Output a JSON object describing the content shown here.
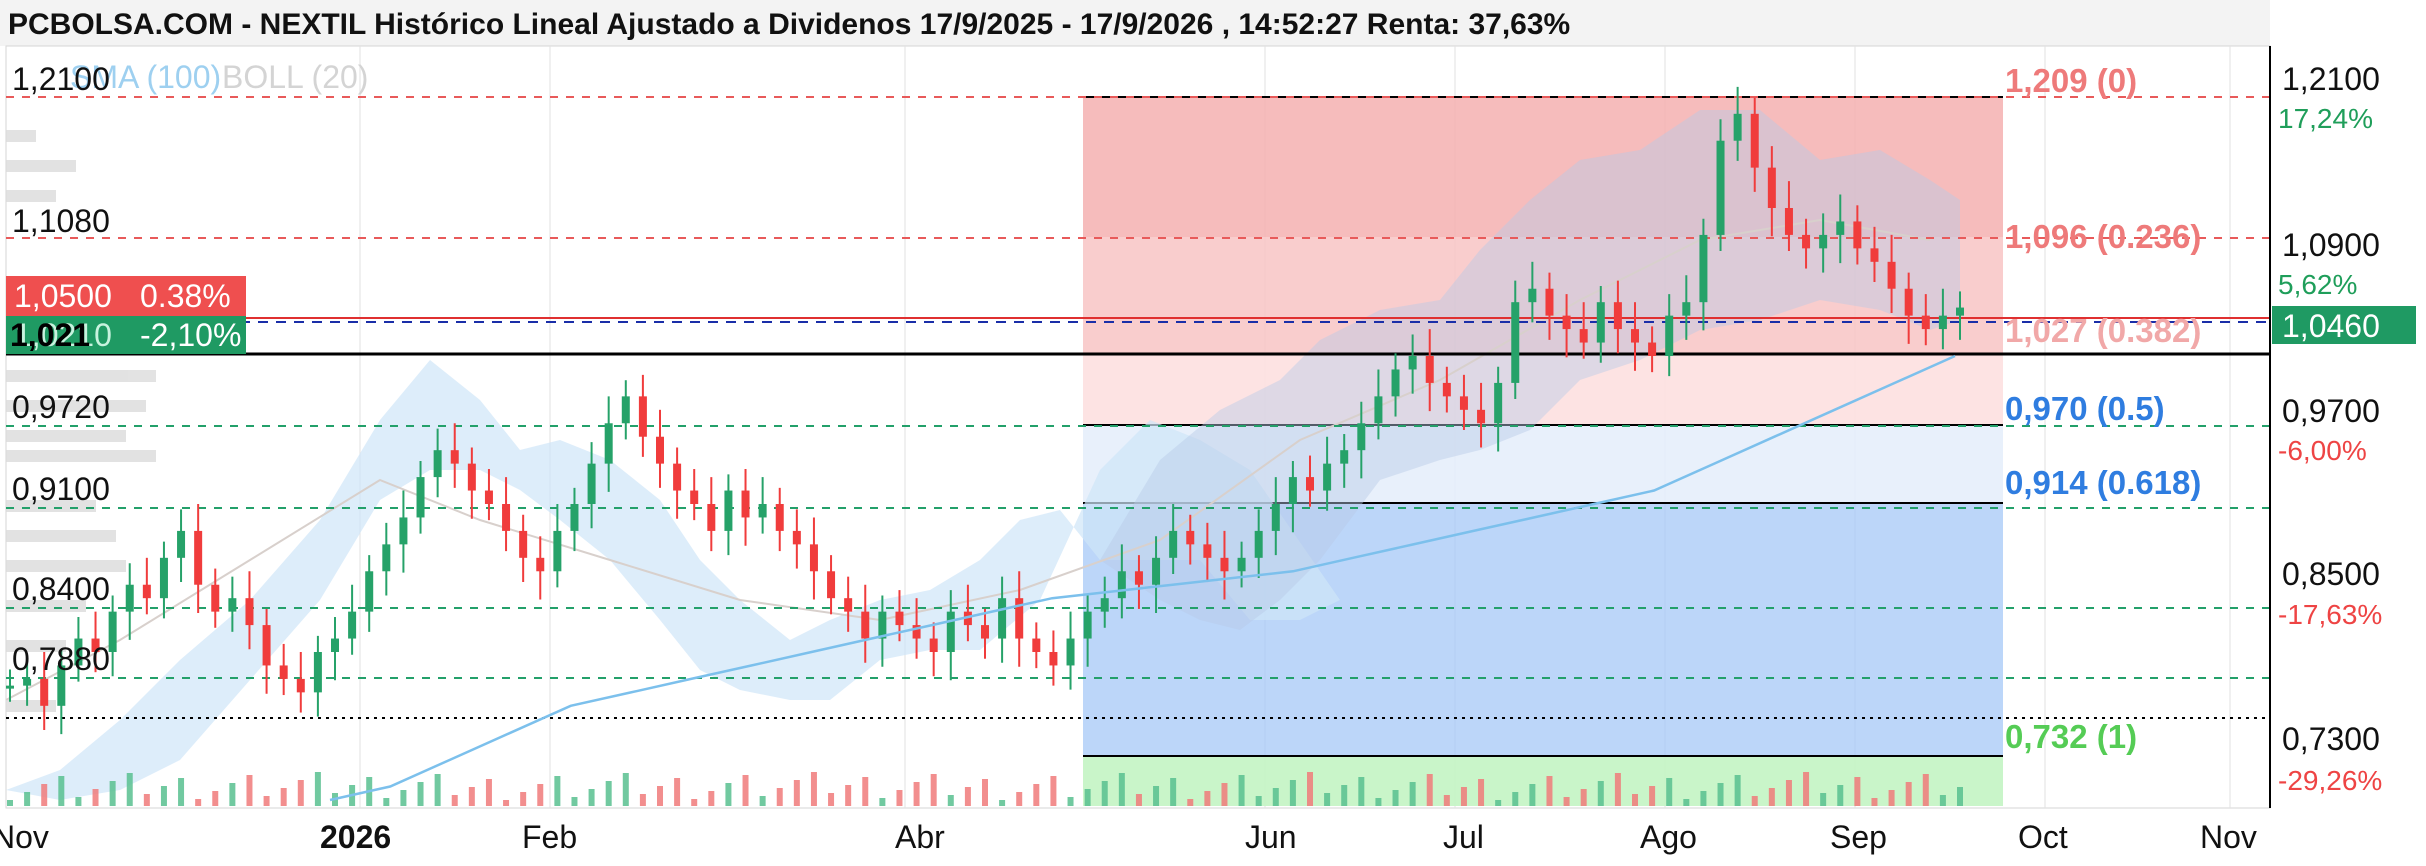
{
  "title": "PCBOLSA.COM - NEXTIL Histórico Lineal Ajustado a Dividenos 17/9/2025 - 17/9/2026 , 14:52:27 Renta: 37,63%",
  "colors": {
    "up": "#26a269",
    "down": "#f03c3c",
    "sma": "#7cc0ec",
    "boll_fill": "#cfe6f8",
    "fib_red": "#f4a5a5",
    "fib_blue": "#7fb3f5",
    "fib_green": "#9de69d",
    "green_text": "#1f9e5a",
    "red_text": "#ee4444",
    "blue_text": "#2f7de0"
  },
  "legend": {
    "sma": "SMA (100)",
    "boll": "BOLL (20)"
  },
  "price_badges": {
    "upper": {
      "price": "1,0500",
      "pct": "0.38%"
    },
    "lower": {
      "price": "1,0210",
      "pct": "-2,10%"
    },
    "line": "1,021"
  },
  "left_labels": [
    "1,2100",
    "1,1080",
    "0,9720",
    "0,9100",
    "0,8400",
    "0,7880"
  ],
  "right_axis": {
    "prices": [
      "1,2100",
      "1,0900",
      "0,9700",
      "0,8500",
      "0,7300"
    ],
    "pcts": [
      "17,24%",
      "5,62%",
      "-6,00%",
      "-17,63%",
      "-29,26%"
    ],
    "current": "1,0460"
  },
  "fib_labels": [
    {
      "text": "1,209 (0)",
      "tone": "red"
    },
    {
      "text": "1,096 (0.236)",
      "tone": "red"
    },
    {
      "text": "1,027 (0.382)",
      "tone": "red"
    },
    {
      "text": "0,970 (0.5)",
      "tone": "blue"
    },
    {
      "text": "0,914 (0.618)",
      "tone": "blue"
    },
    {
      "text": "0,732 (1)",
      "tone": "green"
    }
  ],
  "chart_data": {
    "type": "candlestick",
    "title": "PCBOLSA.COM - NEXTIL Histórico Lineal Ajustado a Dividenos 17/9/2025 - 17/9/2026 , 14:52:27 Renta: 37,63%",
    "x_ticks": [
      "Nov",
      "2026",
      "Feb",
      "Abr",
      "Jun",
      "Jul",
      "Ago",
      "Sep",
      "Oct",
      "Nov"
    ],
    "y_range": [
      0.68,
      1.23
    ],
    "y_ticks": [
      1.21,
      1.09,
      0.97,
      0.85,
      0.73
    ],
    "series_names": [
      "SMA (100)",
      "BOLL (20)"
    ],
    "close_path": [
      [
        0.765,
        0.77,
        0.75,
        0.78,
        0.8,
        0.79,
        0.82,
        0.84,
        0.83,
        0.86,
        0.88,
        0.84,
        0.82,
        0.83,
        0.81,
        0.78,
        0.77,
        0.76,
        0.79,
        0.8,
        0.82,
        0.85,
        0.87,
        0.89,
        0.92,
        0.94,
        0.93,
        0.91,
        0.9,
        0.88,
        0.86,
        0.85,
        0.88,
        0.9,
        0.93,
        0.96,
        0.98,
        0.95,
        0.93,
        0.91,
        0.9,
        0.88,
        0.91,
        0.89,
        0.9,
        0.88,
        0.87,
        0.85,
        0.83,
        0.82,
        0.8,
        0.82,
        0.81,
        0.8,
        0.79,
        0.82,
        0.81,
        0.8,
        0.83,
        0.8,
        0.79,
        0.78,
        0.8,
        0.82,
        0.83,
        0.85,
        0.84,
        0.86,
        0.88,
        0.87,
        0.86,
        0.85,
        0.86,
        0.88,
        0.9,
        0.92,
        0.91,
        0.93,
        0.94,
        0.96,
        0.98,
        1.0,
        1.01,
        0.99,
        0.98,
        0.97,
        0.96,
        0.99,
        1.05,
        1.06,
        1.04,
        1.03,
        1.02,
        1.05,
        1.03,
        1.02,
        1.01,
        1.04,
        1.05,
        1.1,
        1.17,
        1.19,
        1.15,
        1.12,
        1.1,
        1.09,
        1.1,
        1.11,
        1.09,
        1.08,
        1.06,
        1.04,
        1.03,
        1.04,
        1.046
      ]
    ],
    "sma_100": [
      [
        0.68,
        0.69,
        0.71,
        0.73,
        0.75,
        0.76,
        0.77,
        0.78,
        0.79,
        0.8,
        0.81,
        0.82,
        0.83,
        0.835,
        0.84,
        0.845,
        0.85,
        0.86,
        0.87,
        0.88,
        0.89,
        0.9,
        0.91,
        0.93,
        0.95,
        0.97,
        0.99,
        1.01
      ]
    ],
    "fibonacci": [
      {
        "level": 1.209,
        "ratio": "0"
      },
      {
        "level": 1.096,
        "ratio": "0.236"
      },
      {
        "level": 1.027,
        "ratio": "0.382"
      },
      {
        "level": 0.97,
        "ratio": "0.5"
      },
      {
        "level": 0.914,
        "ratio": "0.618"
      },
      {
        "level": 0.732,
        "ratio": "1"
      }
    ],
    "horizontal_levels": [
      1.21,
      1.108,
      1.05,
      1.021,
      0.972,
      0.91,
      0.84,
      0.788,
      0.765
    ],
    "current_price": 1.046
  }
}
